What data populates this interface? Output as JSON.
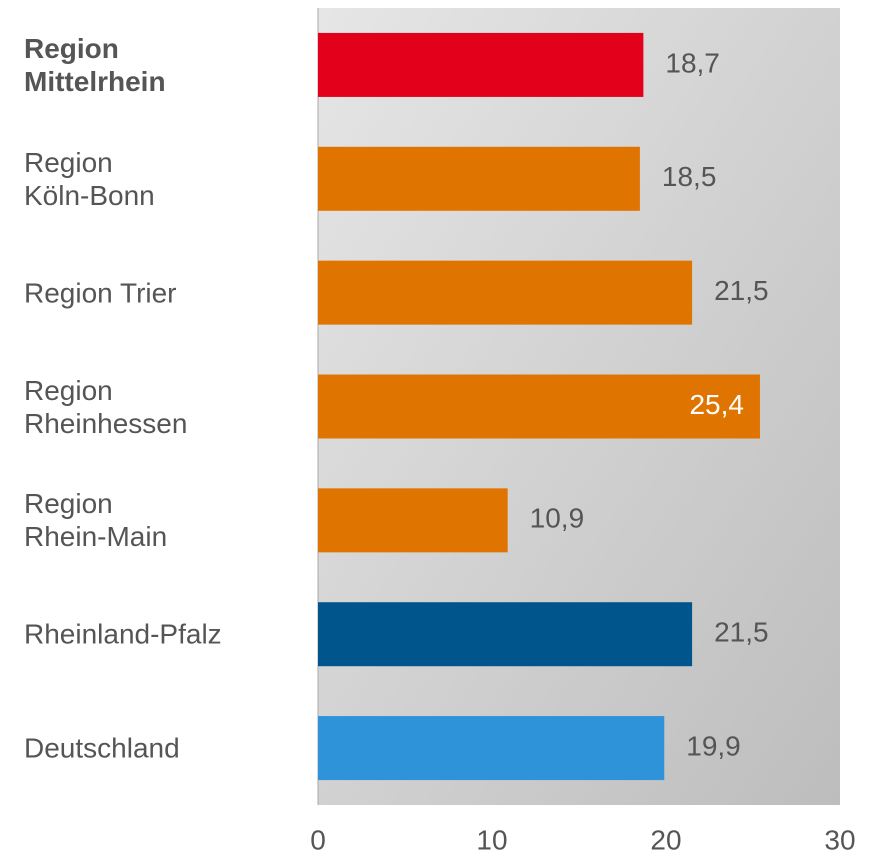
{
  "chart_data": {
    "type": "barh",
    "categories": [
      "Region\nMittelrhein",
      "Region\nKöln-Bonn",
      "Region Trier",
      "Region\nRheinhessen",
      "Region\nRhein-Main",
      "Rheinland-Pfalz",
      "Deutschland"
    ],
    "category_weights": [
      "bold",
      "normal",
      "normal",
      "normal",
      "normal",
      "normal",
      "normal"
    ],
    "values": [
      18.7,
      18.5,
      21.5,
      25.4,
      10.9,
      21.5,
      19.9
    ],
    "value_labels": [
      "18,7",
      "18,5",
      "21,5",
      "25,4",
      "10,9",
      "21,5",
      "19,9"
    ],
    "colors": [
      "#e2001a",
      "#e07400",
      "#e07400",
      "#e07400",
      "#e07400",
      "#00558c",
      "#2e93d9"
    ],
    "xlim": [
      0,
      30
    ],
    "xticks": [
      0,
      10,
      20,
      30
    ],
    "grid": false
  }
}
